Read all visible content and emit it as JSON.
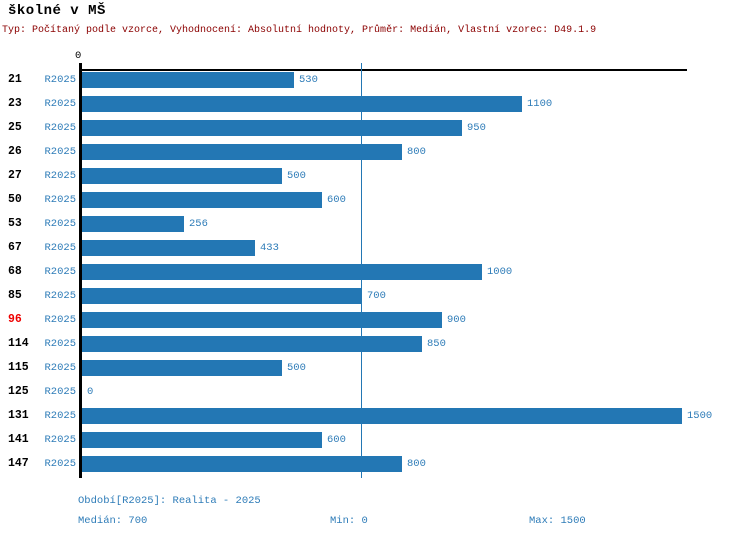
{
  "header": {
    "title": "školné v MŠ",
    "subtitle": "Typ: Počítaný podle vzorce, Vyhodnocení: Absolutní hodnoty, Průměr: Medián, Vlastní vzorec: D49.1.9"
  },
  "colors": {
    "bar_blue": "#2377B4",
    "text_blue": "#2E7CB8",
    "subtitle_red": "#8B0000",
    "highlight_red": "#EE0000",
    "axis_black": "#000000"
  },
  "axis": {
    "zero_tick_label": "0"
  },
  "chart_data": {
    "type": "bar",
    "orientation": "horizontal",
    "title": "školné v MŠ",
    "series_label": "R2025",
    "categories": [
      "21",
      "23",
      "25",
      "26",
      "27",
      "50",
      "53",
      "67",
      "68",
      "85",
      "96",
      "114",
      "115",
      "125",
      "131",
      "141",
      "147"
    ],
    "values": [
      530,
      1100,
      950,
      800,
      500,
      600,
      256,
      433,
      1000,
      700,
      900,
      850,
      500,
      0,
      1500,
      600,
      800
    ],
    "highlighted_category": "96",
    "xlim": [
      0,
      1500
    ],
    "median_line_value": 700,
    "median": 700,
    "min": 0,
    "max": 1500,
    "grid": "none",
    "legend": "none"
  },
  "footer": {
    "period_label": "Období[R2025]: Realita - 2025",
    "median_label": "Medián: 700",
    "min_label": "Min: 0",
    "max_label": "Max: 1500"
  }
}
